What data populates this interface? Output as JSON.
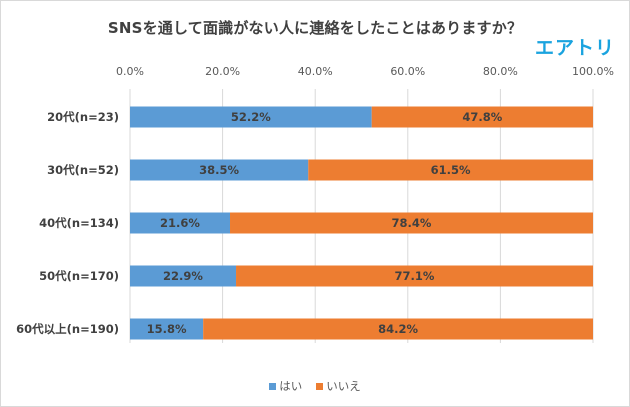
{
  "logo_text": "エアトリ",
  "chart_data": {
    "type": "bar",
    "orientation": "horizontal",
    "stacked": true,
    "title": "SNSを通して面識がない人に連絡をしたことはありますか？",
    "categories": [
      "20代(n=23)",
      "30代(n=52)",
      "40代(n=134)",
      "50代(n=170)",
      "60代以上(n=190)"
    ],
    "series": [
      {
        "name": "はい",
        "color": "#5b9bd5",
        "values": [
          52.2,
          38.5,
          21.6,
          22.9,
          15.8
        ],
        "labels": [
          "52.2%",
          "38.5%",
          "21.6%",
          "22.9%",
          "15.8%"
        ]
      },
      {
        "name": "いいえ",
        "color": "#ed7d31",
        "values": [
          47.8,
          61.5,
          78.4,
          77.1,
          84.2
        ],
        "labels": [
          "47.8%",
          "61.5%",
          "78.4%",
          "77.1%",
          "84.2%"
        ]
      }
    ],
    "xlim": [
      0,
      100
    ],
    "xticks": [
      "0.0%",
      "20.0%",
      "40.0%",
      "60.0%",
      "80.0%",
      "100.0%"
    ],
    "xaxis_position": "top",
    "grid": true,
    "legend_position": "bottom"
  }
}
